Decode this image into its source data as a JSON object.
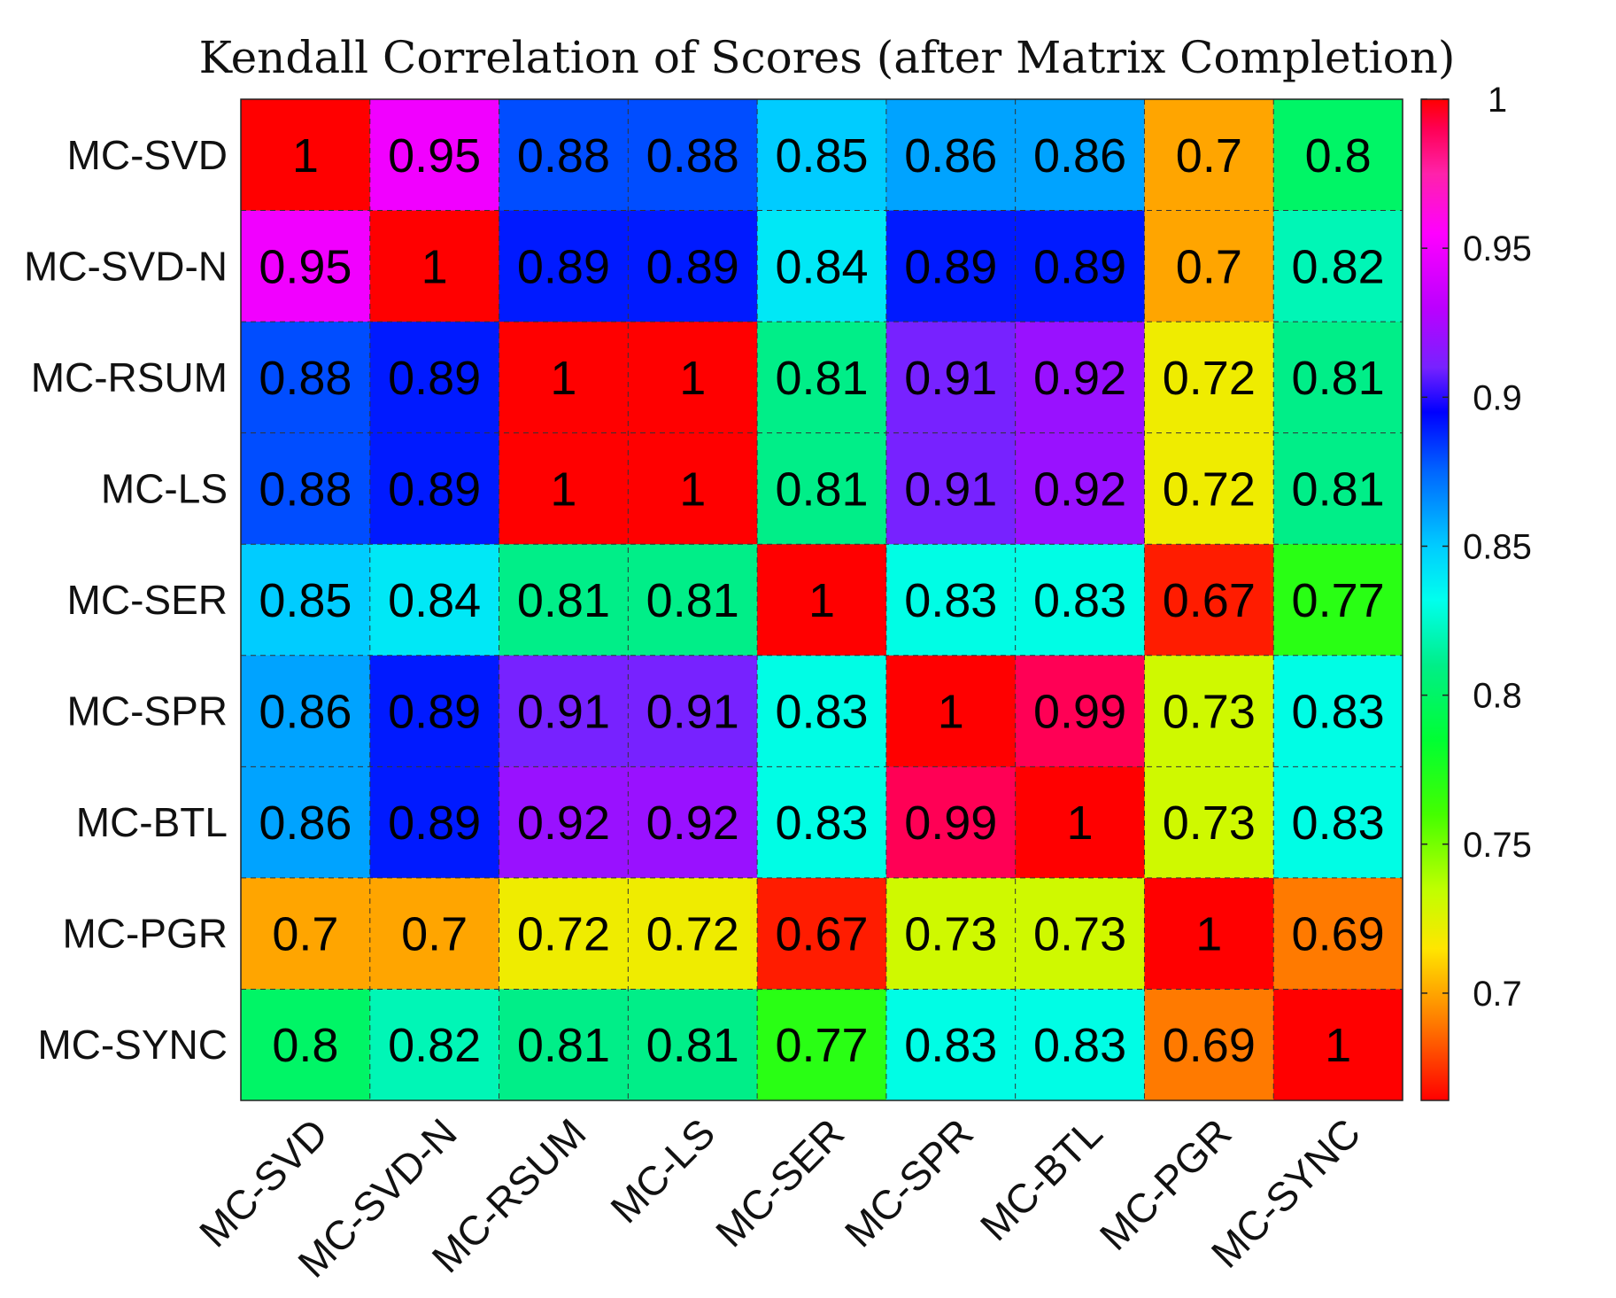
{
  "chart_data": {
    "type": "heatmap",
    "title": "Kendall Correlation of Scores (after Matrix Completion)",
    "row_labels": [
      "MC-SVD",
      "MC-SVD-N",
      "MC-RSUM",
      "MC-LS",
      "MC-SER",
      "MC-SPR",
      "MC-BTL",
      "MC-PGR",
      "MC-SYNC"
    ],
    "col_labels": [
      "MC-SVD",
      "MC-SVD-N",
      "MC-RSUM",
      "MC-LS",
      "MC-SER",
      "MC-SPR",
      "MC-BTL",
      "MC-PGR",
      "MC-SYNC"
    ],
    "values": [
      [
        1,
        0.95,
        0.88,
        0.88,
        0.85,
        0.86,
        0.86,
        0.7,
        0.8
      ],
      [
        0.95,
        1,
        0.89,
        0.89,
        0.84,
        0.89,
        0.89,
        0.7,
        0.82
      ],
      [
        0.88,
        0.89,
        1,
        1,
        0.81,
        0.91,
        0.92,
        0.72,
        0.81
      ],
      [
        0.88,
        0.89,
        1,
        1,
        0.81,
        0.91,
        0.92,
        0.72,
        0.81
      ],
      [
        0.85,
        0.84,
        0.81,
        0.81,
        1,
        0.83,
        0.83,
        0.67,
        0.77
      ],
      [
        0.86,
        0.89,
        0.91,
        0.91,
        0.83,
        1,
        0.99,
        0.73,
        0.83
      ],
      [
        0.86,
        0.89,
        0.92,
        0.92,
        0.83,
        0.99,
        1,
        0.73,
        0.83
      ],
      [
        0.7,
        0.7,
        0.72,
        0.72,
        0.67,
        0.73,
        0.73,
        1,
        0.69
      ],
      [
        0.8,
        0.82,
        0.81,
        0.81,
        0.77,
        0.83,
        0.83,
        0.69,
        1
      ]
    ],
    "colorbar": {
      "min": 0.664,
      "max": 1,
      "ticks": [
        1,
        0.95,
        0.9,
        0.85,
        0.8,
        0.75,
        0.7
      ],
      "tick_labels": [
        "1",
        "0.95",
        "0.9",
        "0.85",
        "0.8",
        "0.75",
        "0.7"
      ]
    },
    "colormap": [
      {
        "v": 0.664,
        "color": "#ff0000"
      },
      {
        "v": 0.69,
        "color": "#ff7a00"
      },
      {
        "v": 0.715,
        "color": "#ffe600"
      },
      {
        "v": 0.735,
        "color": "#bfff00"
      },
      {
        "v": 0.76,
        "color": "#44ff00"
      },
      {
        "v": 0.785,
        "color": "#00ff33"
      },
      {
        "v": 0.81,
        "color": "#00ee88"
      },
      {
        "v": 0.832,
        "color": "#00ffee"
      },
      {
        "v": 0.85,
        "color": "#00ccff"
      },
      {
        "v": 0.875,
        "color": "#0066ff"
      },
      {
        "v": 0.895,
        "color": "#0000ff"
      },
      {
        "v": 0.91,
        "color": "#7722ff"
      },
      {
        "v": 0.93,
        "color": "#bb00ff"
      },
      {
        "v": 0.955,
        "color": "#ff00ff"
      },
      {
        "v": 0.975,
        "color": "#ff22aa"
      },
      {
        "v": 0.99,
        "color": "#ff0055"
      },
      {
        "v": 1.0,
        "color": "#ff0000"
      }
    ],
    "grid": true,
    "grid_style": "dashed"
  }
}
